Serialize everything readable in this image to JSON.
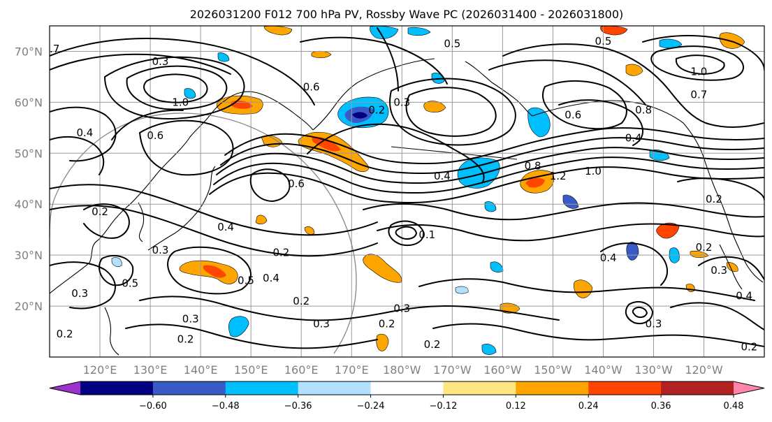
{
  "chart_data": {
    "type": "heatmap",
    "title": "2026031200 F012 700 hPa PV, Rossby Wave PC (2026031400 - 2026031800)",
    "field_contours": "700 hPa PV (black contours, PVU)",
    "field_shading": "Rossby Wave PC anomaly",
    "lat_range": [
      10,
      75
    ],
    "lon_range": [
      110,
      252
    ],
    "lat_ticks": [
      "20°N",
      "30°N",
      "40°N",
      "50°N",
      "60°N",
      "70°N"
    ],
    "lat_values": [
      20,
      30,
      40,
      50,
      60,
      70
    ],
    "lon_ticks": [
      "120°E",
      "130°E",
      "140°E",
      "150°E",
      "160°E",
      "170°E",
      "180°W",
      "170°W",
      "160°W",
      "150°W",
      "140°W",
      "130°W",
      "120°W"
    ],
    "lon_values": [
      120,
      130,
      140,
      150,
      160,
      170,
      180,
      190,
      200,
      210,
      220,
      230,
      240
    ],
    "grid": true,
    "colorbar": {
      "orientation": "horizontal",
      "extend": "both",
      "levels": [
        -0.6,
        -0.48,
        -0.36,
        -0.24,
        -0.12,
        0.12,
        0.24,
        0.36,
        0.48,
        0.6
      ],
      "tick_labels": [
        "−0.60",
        "−0.48",
        "−0.36",
        "−0.24",
        "−0.12",
        "0.12",
        "0.24",
        "0.36",
        "0.48",
        "0.60"
      ],
      "colors": [
        "#9933cc",
        "#000080",
        "#3a5bc7",
        "#00bfff",
        "#b3e0ff",
        "#ffffff",
        "#ffe680",
        "#ffa500",
        "#ff4500",
        "#b22222",
        "#ff85ab"
      ]
    },
    "shaded_regions": [
      {
        "lon": 137,
        "lat": 26.5,
        "value": 0.42
      },
      {
        "lon": 175,
        "lat": 51.5,
        "value": 0.45
      },
      {
        "lon": 148,
        "lat": 60.5,
        "value": 0.4
      },
      {
        "lon": 212,
        "lat": 43.5,
        "value": 0.45
      },
      {
        "lon": 173,
        "lat": 29,
        "value": 0.3
      },
      {
        "lon": 177,
        "lat": 57,
        "value": -0.5
      },
      {
        "lon": 199,
        "lat": 46,
        "value": -0.4
      },
      {
        "lon": 213,
        "lat": 54,
        "value": -0.35
      },
      {
        "lon": 154,
        "lat": 16,
        "value": -0.3
      },
      {
        "lon": 233,
        "lat": 32.5,
        "value": 0.4
      },
      {
        "lon": 227,
        "lat": 31,
        "value": -0.4
      },
      {
        "lon": 178,
        "lat": 72,
        "value": -0.3
      },
      {
        "lon": 158,
        "lat": 72,
        "value": 0.3
      },
      {
        "lon": 237,
        "lat": 72,
        "value": 0.3
      },
      {
        "lon": 242,
        "lat": 73,
        "value": 0.3
      },
      {
        "lon": 222,
        "lat": 22,
        "value": 0.3
      },
      {
        "lon": 199,
        "lat": 19,
        "value": 0.35
      }
    ],
    "contour_labels": [
      {
        "text": ".7",
        "lon": 111,
        "lat": 70.5
      },
      {
        "text": "0.3",
        "lon": 132,
        "lat": 68
      },
      {
        "text": "1.0",
        "lon": 136,
        "lat": 60
      },
      {
        "text": "0.6",
        "lon": 162,
        "lat": 63
      },
      {
        "text": "0.6",
        "lon": 159,
        "lat": 44
      },
      {
        "text": "0.4",
        "lon": 145,
        "lat": 35.5
      },
      {
        "text": "0.2",
        "lon": 156,
        "lat": 30.5
      },
      {
        "text": "0.5",
        "lon": 149,
        "lat": 25
      },
      {
        "text": "0.4",
        "lon": 154,
        "lat": 25.5
      },
      {
        "text": "0.2",
        "lon": 160,
        "lat": 21
      },
      {
        "text": "0.2",
        "lon": 175,
        "lat": 58.5
      },
      {
        "text": "0.3",
        "lon": 180,
        "lat": 60
      },
      {
        "text": "0.5",
        "lon": 190,
        "lat": 71.5
      },
      {
        "text": "0.5",
        "lon": 220,
        "lat": 72
      },
      {
        "text": "1.0",
        "lon": 239,
        "lat": 66
      },
      {
        "text": "0.7",
        "lon": 239,
        "lat": 61.5
      },
      {
        "text": "0.8",
        "lon": 228,
        "lat": 58.5
      },
      {
        "text": "0.6",
        "lon": 214,
        "lat": 57.5
      },
      {
        "text": "0.4",
        "lon": 226,
        "lat": 53
      },
      {
        "text": "0.4",
        "lon": 188,
        "lat": 45.5
      },
      {
        "text": "0.8",
        "lon": 206,
        "lat": 47.5
      },
      {
        "text": "1.2",
        "lon": 211,
        "lat": 45.5
      },
      {
        "text": "1.0",
        "lon": 218,
        "lat": 46.5
      },
      {
        "text": "0.1",
        "lon": 185,
        "lat": 34
      },
      {
        "text": "0.4",
        "lon": 221,
        "lat": 29.5
      },
      {
        "text": "0.2",
        "lon": 242,
        "lat": 41
      },
      {
        "text": "0.2",
        "lon": 240,
        "lat": 31.5
      },
      {
        "text": "0.3",
        "lon": 243,
        "lat": 27
      },
      {
        "text": "0.4",
        "lon": 248,
        "lat": 22
      },
      {
        "text": "0.3",
        "lon": 230,
        "lat": 16.5
      },
      {
        "text": "0.2",
        "lon": 249,
        "lat": 12
      },
      {
        "text": "0.2",
        "lon": 186,
        "lat": 12.5
      },
      {
        "text": "0.2",
        "lon": 177,
        "lat": 16.5
      },
      {
        "text": "0.3",
        "lon": 164,
        "lat": 16.5
      },
      {
        "text": "0.3",
        "lon": 180,
        "lat": 19.5
      },
      {
        "text": "0.3",
        "lon": 138,
        "lat": 17.5
      },
      {
        "text": "0.2",
        "lon": 113,
        "lat": 14.5
      },
      {
        "text": "0.3",
        "lon": 116,
        "lat": 22.5
      },
      {
        "text": "0.5",
        "lon": 126,
        "lat": 24.5
      },
      {
        "text": "0.3",
        "lon": 132,
        "lat": 31
      },
      {
        "text": "0.2",
        "lon": 120,
        "lat": 38.5
      },
      {
        "text": "0.4",
        "lon": 117,
        "lat": 54
      },
      {
        "text": "0.6",
        "lon": 131,
        "lat": 53.5
      },
      {
        "text": "0.2",
        "lon": 137,
        "lat": 13.5
      }
    ]
  }
}
